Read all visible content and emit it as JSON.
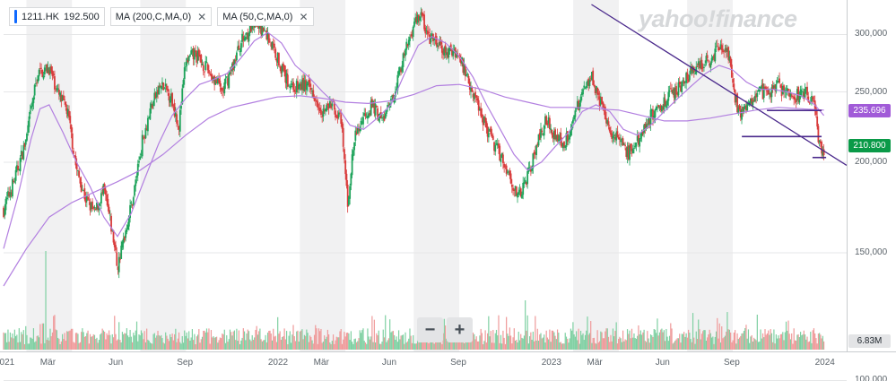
{
  "legend": {
    "ticker": "1211.HK",
    "last_price": "192.500",
    "ma200_label": "MA (200,C,MA,0)",
    "ma50_label": "MA (50,C,MA,0)",
    "close_glyph": "✕"
  },
  "watermark": "yahoo!finance",
  "zoom": {
    "minus": "−",
    "plus": "+"
  },
  "price_tags": [
    {
      "label": "235.696",
      "color": "#a15bd8",
      "value": 235.696
    },
    {
      "label": "210.800",
      "color": "#0a9a48",
      "value": 210.8
    }
  ],
  "volume_tag": "6.83M",
  "colors": {
    "up": "#1ea35a",
    "down": "#d93c3c",
    "ma": "#b27fe0",
    "trend": "#4b2a8c",
    "band": "#f1f1f2"
  },
  "chart_data": {
    "type": "candlestick",
    "title": "",
    "y_scale": "log",
    "ylim": [
      129,
      330
    ],
    "yticks": [
      {
        "label": "300,000",
        "value": 300
      },
      {
        "label": "250,000",
        "value": 250
      },
      {
        "label": "200,000",
        "value": 200
      },
      {
        "label": "150,000",
        "value": 150
      },
      {
        "label": "100,000",
        "value": 100
      }
    ],
    "xlim_month": [
      0,
      37
    ],
    "xticks": [
      {
        "label": "2021",
        "month": 0
      },
      {
        "label": "Mär",
        "month": 2
      },
      {
        "label": "Jun",
        "month": 5
      },
      {
        "label": "Sep",
        "month": 8
      },
      {
        "label": "2022",
        "month": 12
      },
      {
        "label": "Mär",
        "month": 14
      },
      {
        "label": "Jun",
        "month": 17
      },
      {
        "label": "Sep",
        "month": 20
      },
      {
        "label": "2023",
        "month": 24
      },
      {
        "label": "Mär",
        "month": 26
      },
      {
        "label": "Jun",
        "month": 29
      },
      {
        "label": "Sep",
        "month": 32
      },
      {
        "label": "2024",
        "month": 36
      }
    ],
    "bands": [
      [
        1,
        3
      ],
      [
        6,
        8
      ],
      [
        13,
        15
      ],
      [
        18,
        20
      ],
      [
        25,
        27
      ],
      [
        30,
        32
      ]
    ],
    "close_path": [
      [
        0.0,
        172
      ],
      [
        0.5,
        190
      ],
      [
        1.0,
        215
      ],
      [
        1.5,
        265
      ],
      [
        2.0,
        270
      ],
      [
        2.4,
        248
      ],
      [
        2.8,
        235
      ],
      [
        3.2,
        195
      ],
      [
        3.6,
        178
      ],
      [
        4.0,
        170
      ],
      [
        4.4,
        183
      ],
      [
        4.8,
        158
      ],
      [
        5.0,
        143
      ],
      [
        5.3,
        158
      ],
      [
        5.7,
        180
      ],
      [
        6.1,
        215
      ],
      [
        6.5,
        240
      ],
      [
        6.9,
        255
      ],
      [
        7.3,
        248
      ],
      [
        7.7,
        225
      ],
      [
        8.0,
        275
      ],
      [
        8.4,
        282
      ],
      [
        8.8,
        272
      ],
      [
        9.2,
        262
      ],
      [
        9.6,
        250
      ],
      [
        10.0,
        268
      ],
      [
        10.4,
        292
      ],
      [
        10.8,
        305
      ],
      [
        11.2,
        310
      ],
      [
        11.6,
        298
      ],
      [
        12.0,
        280
      ],
      [
        12.4,
        260
      ],
      [
        12.8,
        253
      ],
      [
        13.2,
        256
      ],
      [
        13.6,
        250
      ],
      [
        14.0,
        235
      ],
      [
        14.4,
        240
      ],
      [
        14.8,
        228
      ],
      [
        15.1,
        175
      ],
      [
        15.4,
        215
      ],
      [
        15.8,
        232
      ],
      [
        16.2,
        240
      ],
      [
        16.6,
        228
      ],
      [
        17.0,
        240
      ],
      [
        17.3,
        262
      ],
      [
        17.7,
        288
      ],
      [
        18.0,
        310
      ],
      [
        18.3,
        322
      ],
      [
        18.6,
        298
      ],
      [
        19.0,
        292
      ],
      [
        19.4,
        282
      ],
      [
        19.8,
        286
      ],
      [
        20.2,
        270
      ],
      [
        20.6,
        250
      ],
      [
        21.0,
        232
      ],
      [
        21.4,
        215
      ],
      [
        21.8,
        205
      ],
      [
        22.2,
        192
      ],
      [
        22.6,
        178
      ],
      [
        23.0,
        192
      ],
      [
        23.4,
        210
      ],
      [
        23.8,
        230
      ],
      [
        24.2,
        218
      ],
      [
        24.6,
        212
      ],
      [
        25.0,
        228
      ],
      [
        25.4,
        250
      ],
      [
        25.8,
        265
      ],
      [
        26.2,
        240
      ],
      [
        26.6,
        222
      ],
      [
        27.0,
        215
      ],
      [
        27.4,
        205
      ],
      [
        27.8,
        212
      ],
      [
        28.2,
        228
      ],
      [
        28.6,
        235
      ],
      [
        29.0,
        242
      ],
      [
        29.4,
        250
      ],
      [
        29.8,
        258
      ],
      [
        30.2,
        265
      ],
      [
        30.6,
        272
      ],
      [
        31.0,
        278
      ],
      [
        31.4,
        288
      ],
      [
        31.8,
        282
      ],
      [
        32.0,
        255
      ],
      [
        32.3,
        232
      ],
      [
        32.7,
        243
      ],
      [
        33.1,
        252
      ],
      [
        33.5,
        248
      ],
      [
        33.9,
        255
      ],
      [
        34.3,
        250
      ],
      [
        34.7,
        246
      ],
      [
        35.0,
        250
      ],
      [
        35.3,
        248
      ],
      [
        35.6,
        236
      ],
      [
        35.8,
        210
      ],
      [
        36.0,
        208
      ]
    ],
    "ma50": [
      [
        0.0,
        152
      ],
      [
        0.6,
        178
      ],
      [
        1.2,
        215
      ],
      [
        1.6,
        237
      ],
      [
        2.0,
        240
      ],
      [
        2.6,
        220
      ],
      [
        3.2,
        200
      ],
      [
        3.8,
        185
      ],
      [
        4.4,
        168
      ],
      [
        5.0,
        158
      ],
      [
        5.6,
        170
      ],
      [
        6.2,
        190
      ],
      [
        6.8,
        212
      ],
      [
        7.4,
        232
      ],
      [
        8.0,
        245
      ],
      [
        8.6,
        256
      ],
      [
        9.2,
        260
      ],
      [
        9.8,
        265
      ],
      [
        10.4,
        278
      ],
      [
        11.0,
        294
      ],
      [
        11.6,
        302
      ],
      [
        12.2,
        292
      ],
      [
        12.8,
        272
      ],
      [
        13.4,
        262
      ],
      [
        14.0,
        250
      ],
      [
        14.6,
        240
      ],
      [
        15.2,
        225
      ],
      [
        15.8,
        222
      ],
      [
        16.4,
        230
      ],
      [
        17.0,
        240
      ],
      [
        17.6,
        265
      ],
      [
        18.2,
        290
      ],
      [
        18.8,
        298
      ],
      [
        19.4,
        292
      ],
      [
        20.0,
        280
      ],
      [
        20.6,
        262
      ],
      [
        21.2,
        240
      ],
      [
        21.8,
        222
      ],
      [
        22.4,
        205
      ],
      [
        23.0,
        195
      ],
      [
        23.6,
        200
      ],
      [
        24.2,
        210
      ],
      [
        24.8,
        220
      ],
      [
        25.4,
        235
      ],
      [
        26.0,
        240
      ],
      [
        26.6,
        235
      ],
      [
        27.2,
        222
      ],
      [
        27.8,
        218
      ],
      [
        28.4,
        225
      ],
      [
        29.0,
        235
      ],
      [
        29.6,
        245
      ],
      [
        30.2,
        255
      ],
      [
        30.8,
        265
      ],
      [
        31.4,
        272
      ],
      [
        32.0,
        268
      ],
      [
        32.6,
        258
      ],
      [
        33.2,
        252
      ],
      [
        33.8,
        252
      ],
      [
        34.4,
        250
      ],
      [
        35.0,
        247
      ],
      [
        35.6,
        240
      ],
      [
        36.0,
        232
      ]
    ],
    "ma200": [
      [
        0.0,
        135
      ],
      [
        1.0,
        152
      ],
      [
        2.0,
        168
      ],
      [
        3.0,
        176
      ],
      [
        4.0,
        182
      ],
      [
        5.0,
        188
      ],
      [
        6.0,
        195
      ],
      [
        7.0,
        205
      ],
      [
        8.0,
        218
      ],
      [
        9.0,
        230
      ],
      [
        10.0,
        238
      ],
      [
        11.0,
        242
      ],
      [
        12.0,
        246
      ],
      [
        13.0,
        247
      ],
      [
        14.0,
        245
      ],
      [
        15.0,
        242
      ],
      [
        16.0,
        241
      ],
      [
        17.0,
        243
      ],
      [
        18.0,
        248
      ],
      [
        19.0,
        255
      ],
      [
        20.0,
        256
      ],
      [
        21.0,
        252
      ],
      [
        22.0,
        246
      ],
      [
        23.0,
        242
      ],
      [
        24.0,
        238
      ],
      [
        25.0,
        238
      ],
      [
        26.0,
        237
      ],
      [
        27.0,
        236
      ],
      [
        28.0,
        232
      ],
      [
        29.0,
        228
      ],
      [
        30.0,
        228
      ],
      [
        31.0,
        230
      ],
      [
        32.0,
        233
      ],
      [
        33.0,
        236
      ],
      [
        34.0,
        238
      ],
      [
        35.0,
        237
      ],
      [
        36.0,
        236
      ]
    ],
    "trendline": [
      [
        25.8,
        330
      ],
      [
        37.0,
        198
      ]
    ],
    "hlines": [
      {
        "from": 33.5,
        "to": 35.9,
        "value": 235.7
      },
      {
        "from": 32.4,
        "to": 35.9,
        "value": 217
      },
      {
        "from": 35.5,
        "to": 36.1,
        "value": 203
      }
    ]
  }
}
